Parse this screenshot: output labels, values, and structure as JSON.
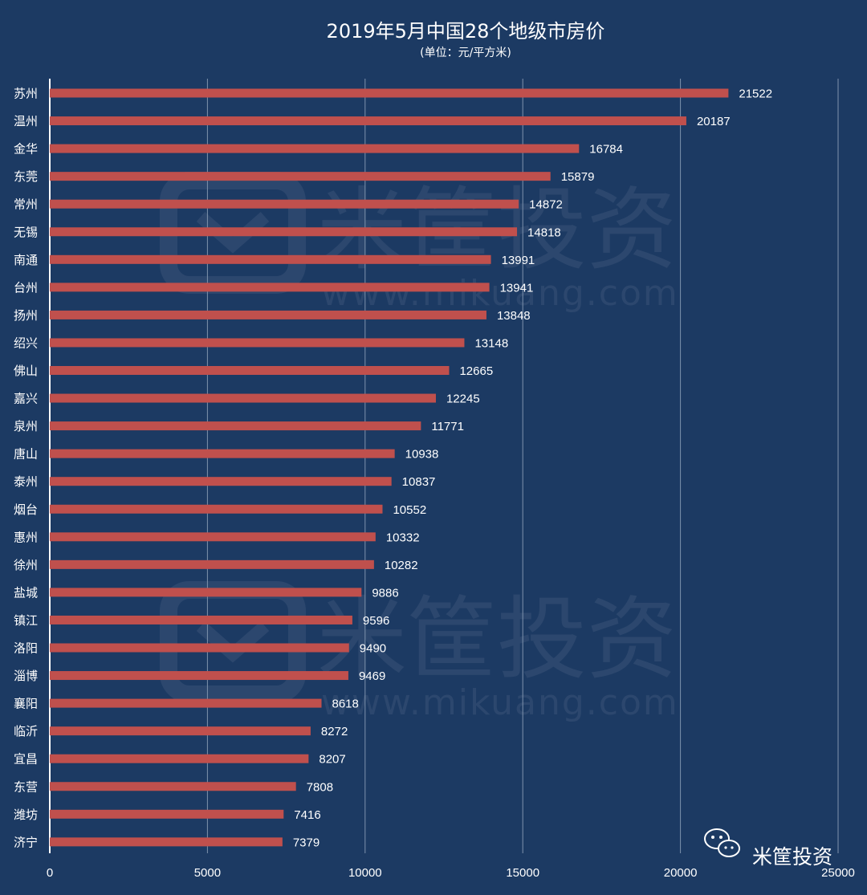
{
  "chart_data": {
    "type": "bar",
    "orientation": "horizontal",
    "title": "2019年5月中国28个地级市房价",
    "subtitle": "(单位：元/平方米)",
    "categories": [
      "苏州",
      "温州",
      "金华",
      "东莞",
      "常州",
      "无锡",
      "南通",
      "台州",
      "扬州",
      "绍兴",
      "佛山",
      "嘉兴",
      "泉州",
      "唐山",
      "泰州",
      "烟台",
      "惠州",
      "徐州",
      "盐城",
      "镇江",
      "洛阳",
      "淄博",
      "襄阳",
      "临沂",
      "宜昌",
      "东营",
      "潍坊",
      "济宁"
    ],
    "values": [
      21522,
      20187,
      16784,
      15879,
      14872,
      14818,
      13991,
      13941,
      13848,
      13148,
      12665,
      12245,
      11771,
      10938,
      10837,
      10552,
      10332,
      10282,
      9886,
      9596,
      9490,
      9469,
      8618,
      8272,
      8207,
      7808,
      7416,
      7379
    ],
    "xlim": [
      0,
      25000
    ],
    "xticks": [
      0,
      5000,
      10000,
      15000,
      20000,
      25000
    ],
    "grid": true,
    "colors": {
      "background": "#1c3a63",
      "bar": "#c0504d",
      "grid": "#7f93ad",
      "text": "#ffffff"
    }
  },
  "watermark": {
    "brand": "米筐投资",
    "url": "www.mikuang.com"
  },
  "brand": {
    "icon": "wechat-icon",
    "name": "米筐投资"
  }
}
